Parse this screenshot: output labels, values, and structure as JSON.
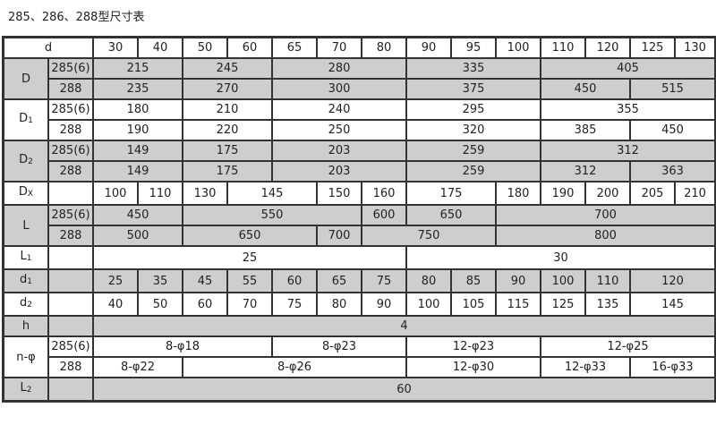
{
  "title": "285、286、288型尺寸表",
  "colors": {
    "shaded_row": "#cecece",
    "border": "#333333"
  },
  "rows": [
    {
      "shaded": false,
      "cells": [
        {
          "t": "d",
          "span": 2
        },
        {
          "t": "30"
        },
        {
          "t": "40"
        },
        {
          "t": "50"
        },
        {
          "t": "60"
        },
        {
          "t": "65"
        },
        {
          "t": "70"
        },
        {
          "t": "80"
        },
        {
          "t": "90"
        },
        {
          "t": "95"
        },
        {
          "t": "100"
        },
        {
          "t": "110"
        },
        {
          "t": "120"
        },
        {
          "t": "125"
        },
        {
          "t": "130"
        }
      ]
    },
    {
      "shaded": true,
      "cells": [
        {
          "t": "D",
          "rowspan": 2
        },
        {
          "t": "285(6)"
        },
        {
          "t": "215",
          "span": 2
        },
        {
          "t": "245",
          "span": 2
        },
        {
          "t": "280",
          "span": 3
        },
        {
          "t": "335",
          "span": 3
        },
        {
          "t": "405",
          "span": 4
        }
      ]
    },
    {
      "shaded": true,
      "cells": [
        {
          "t": "288"
        },
        {
          "t": "235",
          "span": 2
        },
        {
          "t": "270",
          "span": 2
        },
        {
          "t": "300",
          "span": 3
        },
        {
          "t": "375",
          "span": 3
        },
        {
          "t": "450",
          "span": 2
        },
        {
          "t": "515",
          "span": 2
        }
      ]
    },
    {
      "shaded": false,
      "cells": [
        {
          "t": "D",
          "sub": "1",
          "rowspan": 2
        },
        {
          "t": "285(6)"
        },
        {
          "t": "180",
          "span": 2
        },
        {
          "t": "210",
          "span": 2
        },
        {
          "t": "240",
          "span": 3
        },
        {
          "t": "295",
          "span": 3
        },
        {
          "t": "355",
          "span": 4
        }
      ]
    },
    {
      "shaded": false,
      "cells": [
        {
          "t": "288"
        },
        {
          "t": "190",
          "span": 2
        },
        {
          "t": "220",
          "span": 2
        },
        {
          "t": "250",
          "span": 3
        },
        {
          "t": "320",
          "span": 3
        },
        {
          "t": "385",
          "span": 2
        },
        {
          "t": "450",
          "span": 2
        }
      ]
    },
    {
      "shaded": true,
      "cells": [
        {
          "t": "D",
          "sub": "2",
          "rowspan": 2
        },
        {
          "t": "285(6)"
        },
        {
          "t": "149",
          "span": 2
        },
        {
          "t": "175",
          "span": 2
        },
        {
          "t": "203",
          "span": 3
        },
        {
          "t": "259",
          "span": 3
        },
        {
          "t": "312",
          "span": 4
        }
      ]
    },
    {
      "shaded": true,
      "cells": [
        {
          "t": "288"
        },
        {
          "t": "149",
          "span": 2
        },
        {
          "t": "175",
          "span": 2
        },
        {
          "t": "203",
          "span": 3
        },
        {
          "t": "259",
          "span": 3
        },
        {
          "t": "312",
          "span": 2
        },
        {
          "t": "363",
          "span": 2
        }
      ]
    },
    {
      "shaded": false,
      "cells": [
        {
          "t": "D",
          "sub": "X"
        },
        {
          "t": ""
        },
        {
          "t": "100"
        },
        {
          "t": "110"
        },
        {
          "t": "130"
        },
        {
          "t": "145",
          "span": 2
        },
        {
          "t": "150"
        },
        {
          "t": "160"
        },
        {
          "t": "175",
          "span": 2
        },
        {
          "t": "180"
        },
        {
          "t": "190"
        },
        {
          "t": "200"
        },
        {
          "t": "205"
        },
        {
          "t": "210"
        }
      ]
    },
    {
      "shaded": true,
      "cells": [
        {
          "t": "L",
          "rowspan": 2
        },
        {
          "t": "285(6)"
        },
        {
          "t": "450",
          "span": 2
        },
        {
          "t": "550",
          "span": 4
        },
        {
          "t": "600"
        },
        {
          "t": "650",
          "span": 2
        },
        {
          "t": "700",
          "span": 5
        }
      ]
    },
    {
      "shaded": true,
      "cells": [
        {
          "t": "288"
        },
        {
          "t": "500",
          "span": 2
        },
        {
          "t": "650",
          "span": 3
        },
        {
          "t": "700"
        },
        {
          "t": "750",
          "span": 3
        },
        {
          "t": "800",
          "span": 5
        }
      ]
    },
    {
      "shaded": false,
      "cells": [
        {
          "t": "L",
          "sub": "1"
        },
        {
          "t": ""
        },
        {
          "t": "25",
          "span": 7
        },
        {
          "t": "30",
          "span": 7
        }
      ]
    },
    {
      "shaded": true,
      "cells": [
        {
          "t": "d",
          "sub": "1"
        },
        {
          "t": ""
        },
        {
          "t": "25"
        },
        {
          "t": "35"
        },
        {
          "t": "45"
        },
        {
          "t": "55"
        },
        {
          "t": "60"
        },
        {
          "t": "65"
        },
        {
          "t": "75"
        },
        {
          "t": "80"
        },
        {
          "t": "85"
        },
        {
          "t": "90"
        },
        {
          "t": "100"
        },
        {
          "t": "110"
        },
        {
          "t": "120",
          "span": 2
        }
      ]
    },
    {
      "shaded": false,
      "cells": [
        {
          "t": "d",
          "sub": "2"
        },
        {
          "t": ""
        },
        {
          "t": "40"
        },
        {
          "t": "50"
        },
        {
          "t": "60"
        },
        {
          "t": "70"
        },
        {
          "t": "75"
        },
        {
          "t": "80"
        },
        {
          "t": "90"
        },
        {
          "t": "100"
        },
        {
          "t": "105"
        },
        {
          "t": "115"
        },
        {
          "t": "125"
        },
        {
          "t": "135"
        },
        {
          "t": "145",
          "span": 2
        }
      ]
    },
    {
      "shaded": true,
      "cells": [
        {
          "t": "h"
        },
        {
          "t": ""
        },
        {
          "t": "4",
          "span": 14
        }
      ]
    },
    {
      "shaded": false,
      "cells": [
        {
          "t": "n-φ",
          "rowspan": 2
        },
        {
          "t": "285(6)"
        },
        {
          "t": "8-φ18",
          "span": 4
        },
        {
          "t": "8-φ23",
          "span": 3
        },
        {
          "t": "12-φ23",
          "span": 3
        },
        {
          "t": "12-φ25",
          "span": 4
        }
      ]
    },
    {
      "shaded": false,
      "cells": [
        {
          "t": "288"
        },
        {
          "t": "8-φ22",
          "span": 2
        },
        {
          "t": "8-φ26",
          "span": 5
        },
        {
          "t": "12-φ30",
          "span": 3
        },
        {
          "t": "12-φ33",
          "span": 2
        },
        {
          "t": "16-φ33",
          "span": 2
        }
      ]
    },
    {
      "shaded": true,
      "cells": [
        {
          "t": "L",
          "sub": "2"
        },
        {
          "t": ""
        },
        {
          "t": "60",
          "span": 14
        }
      ]
    }
  ]
}
